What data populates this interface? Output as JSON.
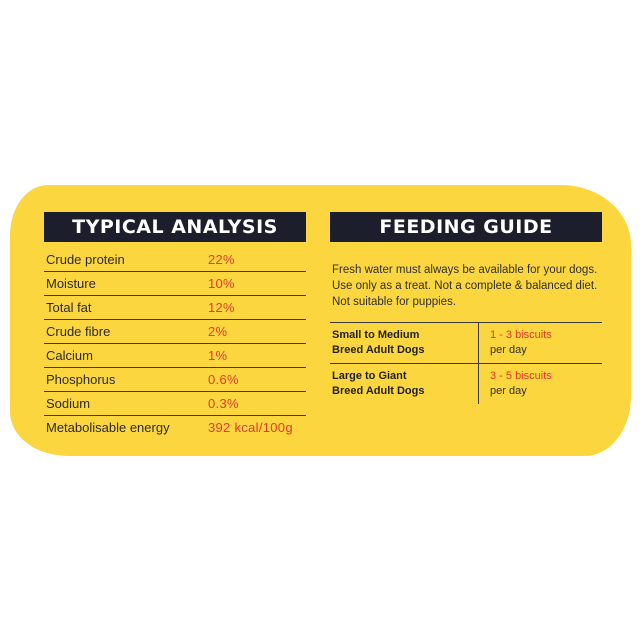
{
  "analysis": {
    "title": "TYPICAL ANALYSIS",
    "rows": [
      {
        "label": "Crude protein",
        "value": "22%"
      },
      {
        "label": "Moisture",
        "value": "10%"
      },
      {
        "label": "Total fat",
        "value": "12%"
      },
      {
        "label": "Crude fibre",
        "value": "2%"
      },
      {
        "label": "Calcium",
        "value": "1%"
      },
      {
        "label": "Phosphorus",
        "value": "0.6%"
      },
      {
        "label": "Sodium",
        "value": "0.3%"
      },
      {
        "label": "Metabolisable energy",
        "value": "392 kcal/100g"
      }
    ]
  },
  "feeding": {
    "title": "FEEDING GUIDE",
    "intro": "Fresh water must always be available for your dogs. Use only as a treat. Not a complete & balanced diet. Not suitable for puppies.",
    "rows": [
      {
        "who_line1": "Small to Medium",
        "who_line2": "Breed Adult Dogs",
        "amount": "1 - 3 biscuits",
        "unit": "per day"
      },
      {
        "who_line1": "Large to Giant",
        "who_line2": "Breed Adult Dogs",
        "amount": "3 - 5 biscuits",
        "unit": "per day"
      }
    ]
  },
  "colors": {
    "card": "#fcd63f",
    "header": "#1c1f2b",
    "accent": "#e23a2e"
  }
}
